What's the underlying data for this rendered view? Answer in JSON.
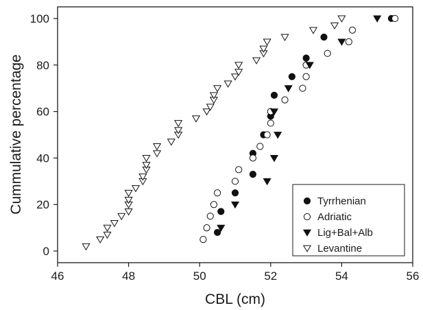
{
  "chart_data": {
    "type": "scatter",
    "xlabel": "CBL (cm)",
    "ylabel": "Cummulative percentage",
    "xlim": [
      46,
      56
    ],
    "ylim": [
      -5,
      105
    ],
    "xticks": [
      46,
      48,
      50,
      52,
      54,
      56
    ],
    "yticks": [
      0,
      20,
      40,
      60,
      80,
      100
    ],
    "grid": false,
    "legend_position": "bottom-right",
    "series": [
      {
        "name": "Tyrrhenian",
        "marker": "filled-circle",
        "points": [
          [
            50.5,
            8
          ],
          [
            50.6,
            17
          ],
          [
            51.0,
            25
          ],
          [
            51.5,
            33
          ],
          [
            51.5,
            42
          ],
          [
            51.8,
            50
          ],
          [
            52.0,
            58
          ],
          [
            52.1,
            67
          ],
          [
            52.6,
            75
          ],
          [
            53.0,
            83
          ],
          [
            53.5,
            92
          ],
          [
            55.4,
            100
          ]
        ]
      },
      {
        "name": "Adriatic",
        "marker": "open-circle",
        "points": [
          [
            50.1,
            5
          ],
          [
            50.2,
            10
          ],
          [
            50.3,
            15
          ],
          [
            50.4,
            20
          ],
          [
            50.5,
            25
          ],
          [
            51.0,
            30
          ],
          [
            51.1,
            35
          ],
          [
            51.5,
            40
          ],
          [
            51.7,
            45
          ],
          [
            51.9,
            50
          ],
          [
            52.0,
            55
          ],
          [
            52.0,
            60
          ],
          [
            52.4,
            65
          ],
          [
            52.9,
            70
          ],
          [
            53.0,
            75
          ],
          [
            53.0,
            80
          ],
          [
            53.6,
            85
          ],
          [
            54.2,
            90
          ],
          [
            54.3,
            95
          ],
          [
            55.5,
            100
          ]
        ]
      },
      {
        "name": "Lig+Bal+Alb",
        "marker": "filled-triangle-down",
        "points": [
          [
            50.6,
            10
          ],
          [
            51.0,
            20
          ],
          [
            51.9,
            30
          ],
          [
            52.1,
            40
          ],
          [
            52.2,
            50
          ],
          [
            52.1,
            60
          ],
          [
            52.5,
            70
          ],
          [
            53.1,
            80
          ],
          [
            54.0,
            90
          ],
          [
            55.0,
            100
          ]
        ]
      },
      {
        "name": "Levantine",
        "marker": "open-triangle-down",
        "points": [
          [
            46.8,
            2
          ],
          [
            47.2,
            5
          ],
          [
            47.4,
            7
          ],
          [
            47.4,
            10
          ],
          [
            47.6,
            12
          ],
          [
            47.8,
            15
          ],
          [
            48.0,
            17
          ],
          [
            48.0,
            20
          ],
          [
            48.0,
            22
          ],
          [
            48.0,
            25
          ],
          [
            48.2,
            27
          ],
          [
            48.4,
            30
          ],
          [
            48.4,
            32
          ],
          [
            48.5,
            35
          ],
          [
            48.5,
            37
          ],
          [
            48.5,
            40
          ],
          [
            48.8,
            42
          ],
          [
            48.8,
            45
          ],
          [
            49.2,
            47
          ],
          [
            49.4,
            50
          ],
          [
            49.4,
            52
          ],
          [
            49.4,
            55
          ],
          [
            49.9,
            57
          ],
          [
            50.2,
            60
          ],
          [
            50.3,
            62
          ],
          [
            50.4,
            65
          ],
          [
            50.4,
            67
          ],
          [
            50.5,
            70
          ],
          [
            50.8,
            72
          ],
          [
            51.0,
            75
          ],
          [
            51.1,
            77
          ],
          [
            51.1,
            80
          ],
          [
            51.6,
            82
          ],
          [
            51.8,
            85
          ],
          [
            51.8,
            87
          ],
          [
            51.9,
            90
          ],
          [
            52.4,
            92
          ],
          [
            53.2,
            95
          ],
          [
            53.8,
            97
          ],
          [
            54.0,
            100
          ]
        ]
      }
    ]
  }
}
